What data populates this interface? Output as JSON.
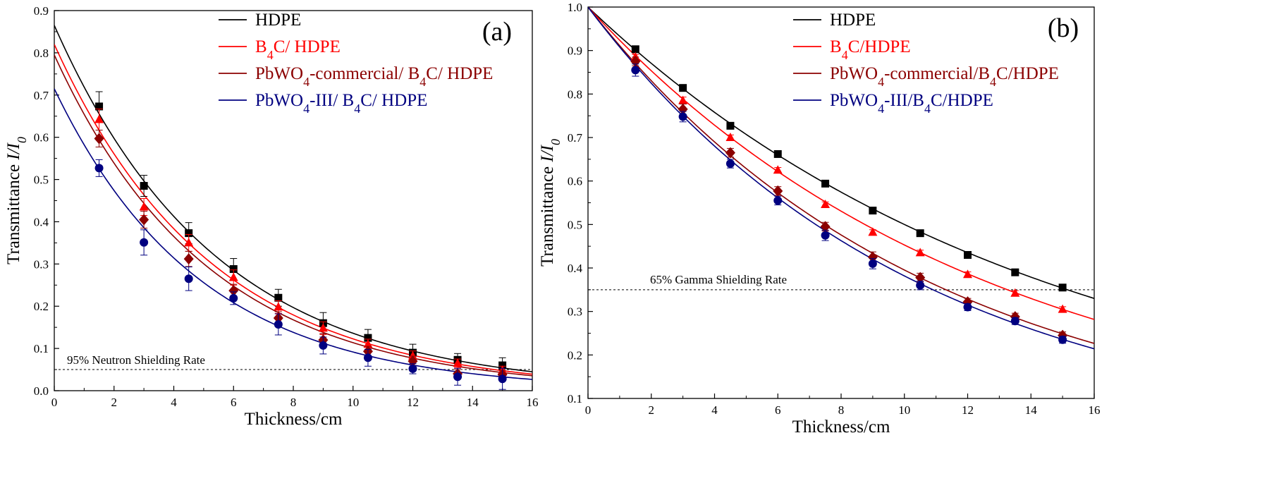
{
  "chart_data": [
    {
      "type": "scatter",
      "panel_label": "(a)",
      "xlabel": "Thickness/cm",
      "ylabel": "Transmittance I/I0",
      "xlim": [
        0,
        16
      ],
      "ylim": [
        0.0,
        0.9
      ],
      "x_ticks": [
        "0",
        "2",
        "4",
        "6",
        "8",
        "10",
        "12",
        "14",
        "16"
      ],
      "y_ticks": [
        "0.0",
        "0.1",
        "0.2",
        "0.3",
        "0.4",
        "0.5",
        "0.6",
        "0.7",
        "0.8",
        "0.9"
      ],
      "legend_position": "top-right",
      "reference_line": {
        "y": 0.05,
        "label": "95% Neutron Shielding Rate"
      },
      "x": [
        1.5,
        3.0,
        4.5,
        6.0,
        7.5,
        9.0,
        10.5,
        12.0,
        13.5,
        15.0
      ],
      "series": [
        {
          "name": "HDPE",
          "legend_html": "HDPE",
          "color": "#000000",
          "marker": "square",
          "values": [
            0.673,
            0.485,
            0.373,
            0.288,
            0.22,
            0.16,
            0.125,
            0.09,
            0.073,
            0.06
          ],
          "errors": [
            0.035,
            0.025,
            0.025,
            0.025,
            0.02,
            0.025,
            0.02,
            0.02,
            0.015,
            0.018
          ],
          "fit": {
            "a": 0.865,
            "b": 0.185
          }
        },
        {
          "name": "B4C/ HDPE",
          "legend_html": "B<tspan baseline-shift='sub' font-size='18'>4</tspan>C/ HDPE",
          "color": "#ff0000",
          "marker": "triangle",
          "values": [
            0.642,
            0.435,
            0.35,
            0.268,
            0.198,
            0.148,
            0.11,
            0.082,
            0.065,
            0.048
          ],
          "errors": [
            0.025,
            0.02,
            0.02,
            0.018,
            0.015,
            0.015,
            0.012,
            0.012,
            0.01,
            0.01
          ],
          "fit": {
            "a": 0.82,
            "b": 0.19
          }
        },
        {
          "name": "PbWO4-commercial/ B4C/ HDPE",
          "legend_html": "PbWO<tspan baseline-shift='sub' font-size='18'>4</tspan><tspan baseline-shift='0'>-commercial/ B</tspan><tspan baseline-shift='sub' font-size='18'>4</tspan><tspan baseline-shift='0'>C/ HDPE</tspan>",
          "color": "#8b0000",
          "marker": "diamond",
          "values": [
            0.597,
            0.405,
            0.312,
            0.237,
            0.172,
            0.12,
            0.093,
            0.07,
            0.04,
            0.038
          ],
          "errors": [
            0.02,
            0.02,
            0.018,
            0.015,
            0.015,
            0.015,
            0.012,
            0.012,
            0.01,
            0.01
          ],
          "fit": {
            "a": 0.795,
            "b": 0.1945
          }
        },
        {
          "name": "PbWO4-III/ B4C/ HDPE",
          "legend_html": "PbWO<tspan baseline-shift='sub' font-size='18'>4</tspan><tspan baseline-shift='0'>-III/ B</tspan><tspan baseline-shift='sub' font-size='18'>4</tspan><tspan baseline-shift='0'>C/ HDPE</tspan>",
          "color": "#000080",
          "marker": "circle",
          "values": [
            0.527,
            0.351,
            0.265,
            0.219,
            0.157,
            0.107,
            0.078,
            0.052,
            0.033,
            0.028
          ],
          "errors": [
            0.02,
            0.03,
            0.028,
            0.015,
            0.025,
            0.02,
            0.02,
            0.012,
            0.02,
            0.025
          ],
          "fit": {
            "a": 0.715,
            "b": 0.2055
          }
        }
      ]
    },
    {
      "type": "scatter",
      "panel_label": "(b)",
      "xlabel": "Thickness/cm",
      "ylabel": "Transmittance I/I0",
      "xlim": [
        0,
        16
      ],
      "ylim": [
        0.1,
        1.0
      ],
      "x_ticks": [
        "0",
        "2",
        "4",
        "6",
        "8",
        "10",
        "12",
        "14",
        "16"
      ],
      "y_ticks": [
        "0.1",
        "0.2",
        "0.3",
        "0.4",
        "0.5",
        "0.6",
        "0.7",
        "0.8",
        "0.9",
        "1.0"
      ],
      "legend_position": "top-right",
      "reference_line": {
        "y": 0.35,
        "label": "65% Gamma Shielding Rate"
      },
      "x": [
        1.5,
        3.0,
        4.5,
        6.0,
        7.5,
        9.0,
        10.5,
        12.0,
        13.5,
        15.0
      ],
      "series": [
        {
          "name": "HDPE",
          "legend_html": "HDPE",
          "color": "#000000",
          "marker": "square",
          "values": [
            0.903,
            0.814,
            0.727,
            0.662,
            0.594,
            0.532,
            0.48,
            0.43,
            0.39,
            0.355
          ],
          "errors": [
            0.006,
            0.006,
            0.006,
            0.006,
            0.006,
            0.006,
            0.006,
            0.006,
            0.006,
            0.006
          ],
          "fit": {
            "a": 1.0,
            "b": 0.0693
          }
        },
        {
          "name": "B4C/HDPE",
          "legend_html": "B<tspan baseline-shift='sub' font-size='18'>4</tspan><tspan baseline-shift='0'>C/HDPE</tspan>",
          "color": "#ff0000",
          "marker": "triangle",
          "values": [
            0.885,
            0.785,
            0.7,
            0.625,
            0.546,
            0.482,
            0.435,
            0.385,
            0.342,
            0.305
          ],
          "errors": [
            0.006,
            0.008,
            0.006,
            0.006,
            0.006,
            0.006,
            0.006,
            0.006,
            0.006,
            0.006
          ],
          "fit": {
            "a": 1.0,
            "b": 0.0792
          }
        },
        {
          "name": "PbWO4-commercial/B4C/HDPE",
          "legend_html": "PbWO<tspan baseline-shift='sub' font-size='18'>4</tspan><tspan baseline-shift='0'>-commercial/B</tspan><tspan baseline-shift='sub' font-size='18'>4</tspan><tspan baseline-shift='0'>C/HDPE</tspan>",
          "color": "#8b0000",
          "marker": "diamond",
          "values": [
            0.875,
            0.765,
            0.665,
            0.577,
            0.495,
            0.425,
            0.378,
            0.322,
            0.288,
            0.245
          ],
          "errors": [
            0.01,
            0.012,
            0.01,
            0.01,
            0.01,
            0.012,
            0.01,
            0.008,
            0.008,
            0.008
          ],
          "fit": {
            "a": 1.0,
            "b": 0.0928
          }
        },
        {
          "name": "PbWO4-III/B4C/HDPE",
          "legend_html": "PbWO<tspan baseline-shift='sub' font-size='18'>4</tspan><tspan baseline-shift='0'>-III/B</tspan><tspan baseline-shift='sub' font-size='18'>4</tspan><tspan baseline-shift='0'>C/HDPE</tspan>",
          "color": "#000080",
          "marker": "circle",
          "values": [
            0.855,
            0.748,
            0.64,
            0.555,
            0.475,
            0.41,
            0.36,
            0.31,
            0.278,
            0.235
          ],
          "errors": [
            0.014,
            0.012,
            0.01,
            0.01,
            0.012,
            0.012,
            0.01,
            0.008,
            0.008,
            0.008
          ],
          "fit": {
            "a": 1.0,
            "b": 0.0963
          }
        }
      ]
    }
  ]
}
